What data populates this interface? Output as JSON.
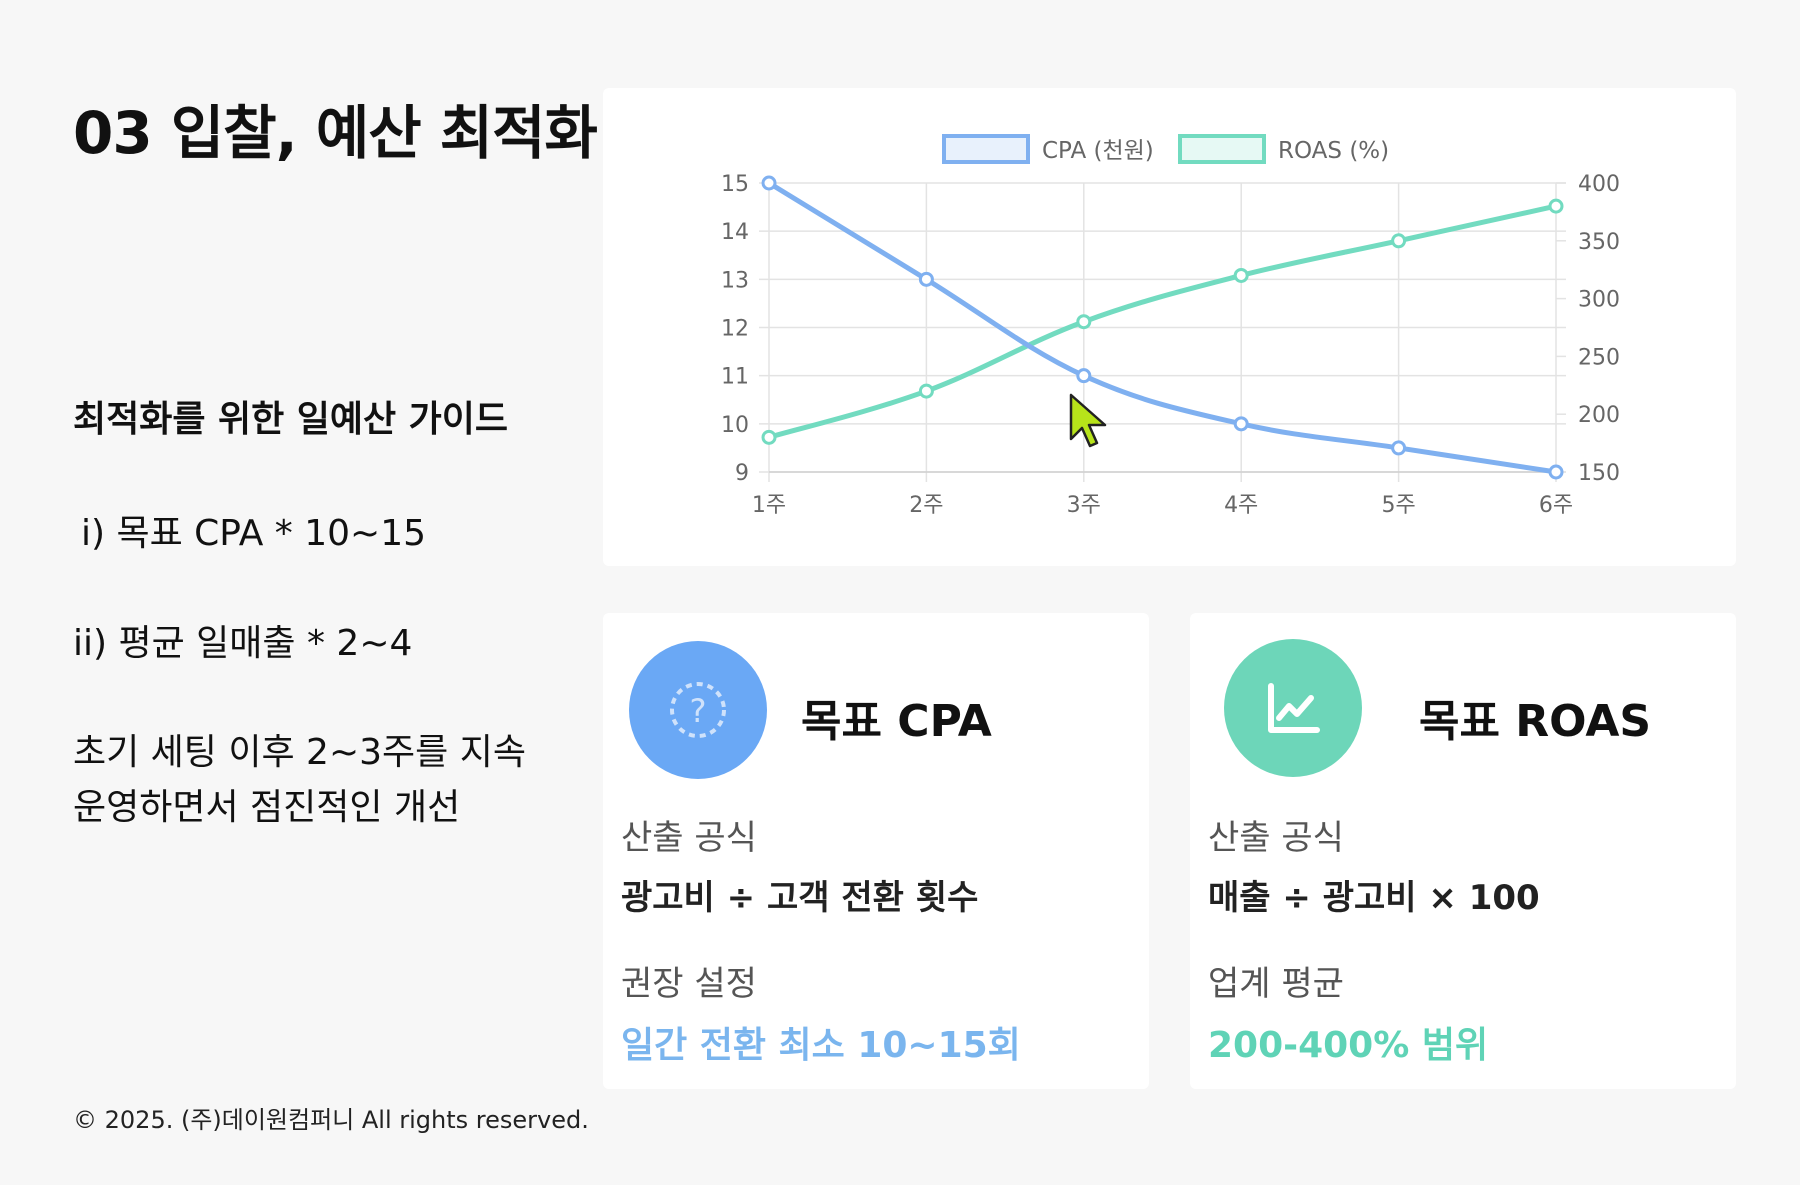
{
  "header": {
    "title": "03 입찰, 예산 최적화"
  },
  "guide": {
    "heading": "최적화를 위한 일예산 가이드",
    "line1": "i) 목표 CPA * 10~15",
    "line2": "ii) 평균 일매출 * 2~4",
    "line3": "초기 세팅 이후 2~3주를 지속",
    "line4": "운영하면서 점진적인 개선"
  },
  "footer": {
    "copyright": "© 2025. (주)데이원컴퍼니 All rights reserved."
  },
  "cards": {
    "cpa": {
      "title": "목표 CPA",
      "formula_label": "산출 공식",
      "formula": "광고비 ÷ 고객 전환 횟수",
      "setting_label": "권장 설정",
      "setting_value": "일간 전환 최소 10~15회",
      "accent": "#6aa8f5",
      "icon": "question-circle-icon"
    },
    "roas": {
      "title": "목표 ROAS",
      "formula_label": "산출 공식",
      "formula": "매출 ÷ 광고비 × 100",
      "setting_label": "업계 평균",
      "setting_value": "200-400% 범위",
      "accent": "#6dd6b9",
      "icon": "line-chart-icon"
    }
  },
  "chart_data": {
    "type": "line",
    "categories": [
      "1주",
      "2주",
      "3주",
      "4주",
      "5주",
      "6주"
    ],
    "series": [
      {
        "name": "CPA (천원)",
        "axis": "left",
        "color": "#7fb0f0",
        "values": [
          15,
          13,
          11,
          10,
          9.5,
          9
        ]
      },
      {
        "name": "ROAS (%)",
        "axis": "right",
        "color": "#72dbc0",
        "values": [
          180,
          220,
          280,
          320,
          350,
          380
        ]
      }
    ],
    "y_left": {
      "min": 9,
      "max": 15,
      "ticks": [
        9,
        10,
        11,
        12,
        13,
        14,
        15
      ]
    },
    "y_right": {
      "min": 150,
      "max": 400,
      "ticks": [
        150,
        200,
        250,
        300,
        350,
        400
      ]
    },
    "legend_position": "top",
    "grid": true
  }
}
